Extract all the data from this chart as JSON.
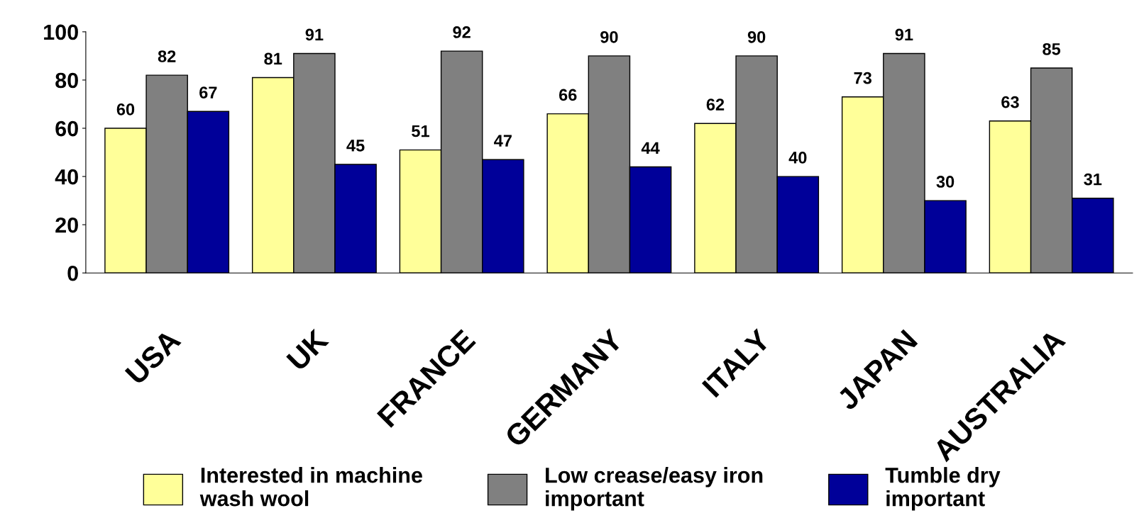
{
  "chart_data": {
    "type": "bar",
    "categories": [
      "USA",
      "UK",
      "FRANCE",
      "GERMANY",
      "ITALY",
      "JAPAN",
      "AUSTRALIA"
    ],
    "series": [
      {
        "name": "Interested in machine wash wool",
        "color": "#ffff99",
        "values": [
          60,
          81,
          51,
          66,
          62,
          73,
          63
        ]
      },
      {
        "name": "Low crease/easy iron important",
        "color": "#808080",
        "values": [
          82,
          91,
          92,
          90,
          90,
          91,
          85
        ]
      },
      {
        "name": "Tumble dry important",
        "color": "#000099",
        "values": [
          67,
          45,
          47,
          44,
          40,
          30,
          31
        ]
      }
    ],
    "ylim": [
      0,
      100
    ],
    "yticks": [
      0,
      20,
      40,
      60,
      80,
      100
    ],
    "grid": false,
    "legend": "bottom",
    "data_labels": true
  }
}
